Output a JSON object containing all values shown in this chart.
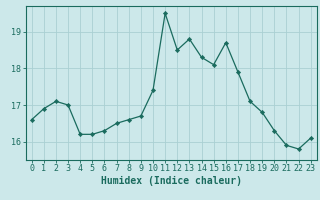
{
  "x": [
    0,
    1,
    2,
    3,
    4,
    5,
    6,
    7,
    8,
    9,
    10,
    11,
    12,
    13,
    14,
    15,
    16,
    17,
    18,
    19,
    20,
    21,
    22,
    23
  ],
  "y": [
    16.6,
    16.9,
    17.1,
    17.0,
    16.2,
    16.2,
    16.3,
    16.5,
    16.6,
    16.7,
    17.4,
    19.5,
    18.5,
    18.8,
    18.3,
    18.1,
    18.7,
    17.9,
    17.1,
    16.8,
    16.3,
    15.9,
    15.8,
    16.1
  ],
  "line_color": "#1a6b5e",
  "marker_color": "#1a6b5e",
  "bg_color": "#cce8ea",
  "grid_color": "#aad0d3",
  "xlabel": "Humidex (Indice chaleur)",
  "xlim": [
    -0.5,
    23.5
  ],
  "ylim": [
    15.5,
    19.7
  ],
  "yticks": [
    16,
    17,
    18,
    19
  ],
  "xtick_labels": [
    "0",
    "1",
    "2",
    "3",
    "4",
    "5",
    "6",
    "7",
    "8",
    "9",
    "10",
    "11",
    "12",
    "13",
    "14",
    "15",
    "16",
    "17",
    "18",
    "19",
    "20",
    "21",
    "22",
    "23"
  ],
  "xlabel_fontsize": 7,
  "tick_fontsize": 6,
  "tick_color": "#1a6b5e",
  "axis_color": "#1a6b5e",
  "linewidth": 0.9,
  "markersize": 2.2
}
